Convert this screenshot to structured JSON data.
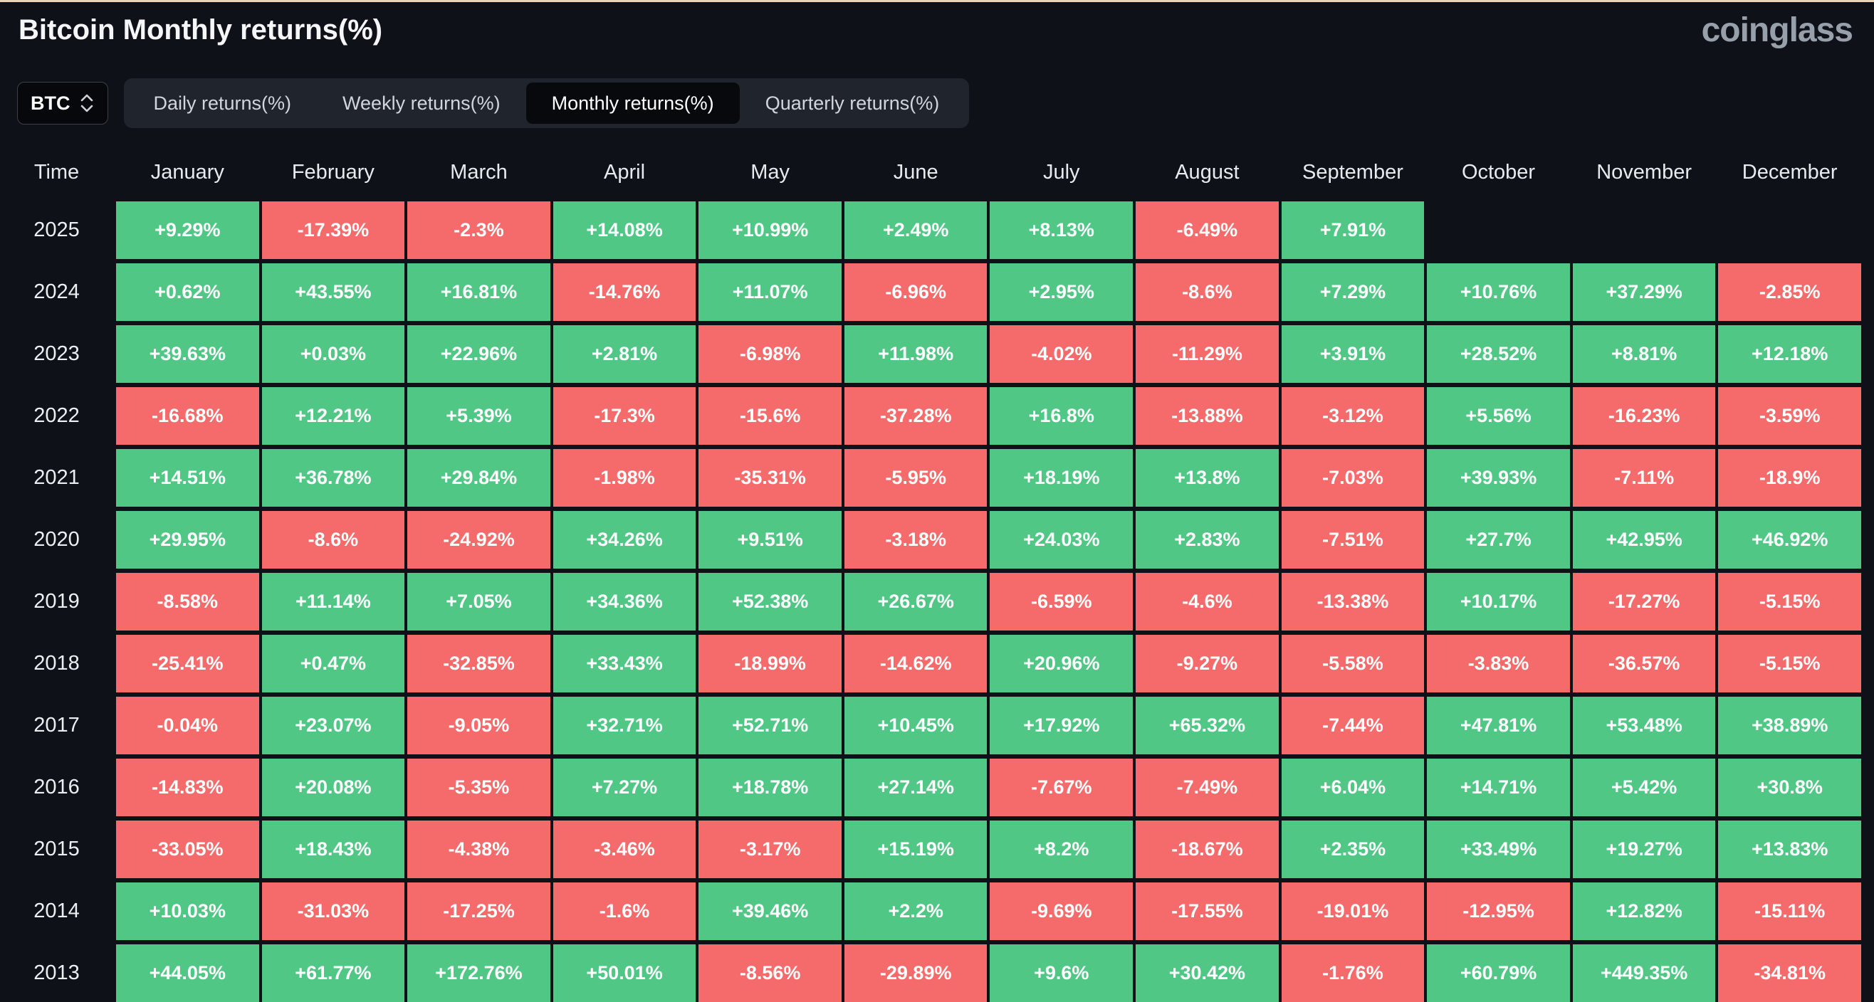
{
  "header": {
    "title": "Bitcoin Monthly returns(%)",
    "logo_text": "coinglass"
  },
  "controls": {
    "coin_selector": {
      "value": "BTC"
    },
    "tabs": [
      {
        "label": "Daily returns(%)",
        "active": false
      },
      {
        "label": "Weekly returns(%)",
        "active": false
      },
      {
        "label": "Monthly returns(%)",
        "active": true
      },
      {
        "label": "Quarterly returns(%)",
        "active": false
      }
    ]
  },
  "table": {
    "time_header": "Time",
    "month_headers": [
      "January",
      "February",
      "March",
      "April",
      "May",
      "June",
      "July",
      "August",
      "September",
      "October",
      "November",
      "December"
    ],
    "rows": [
      {
        "year": "2025",
        "values": [
          "+9.29%",
          "-17.39%",
          "-2.3%",
          "+14.08%",
          "+10.99%",
          "+2.49%",
          "+8.13%",
          "-6.49%",
          "+7.91%",
          null,
          null,
          null
        ]
      },
      {
        "year": "2024",
        "values": [
          "+0.62%",
          "+43.55%",
          "+16.81%",
          "-14.76%",
          "+11.07%",
          "-6.96%",
          "+2.95%",
          "-8.6%",
          "+7.29%",
          "+10.76%",
          "+37.29%",
          "-2.85%"
        ]
      },
      {
        "year": "2023",
        "values": [
          "+39.63%",
          "+0.03%",
          "+22.96%",
          "+2.81%",
          "-6.98%",
          "+11.98%",
          "-4.02%",
          "-11.29%",
          "+3.91%",
          "+28.52%",
          "+8.81%",
          "+12.18%"
        ]
      },
      {
        "year": "2022",
        "values": [
          "-16.68%",
          "+12.21%",
          "+5.39%",
          "-17.3%",
          "-15.6%",
          "-37.28%",
          "+16.8%",
          "-13.88%",
          "-3.12%",
          "+5.56%",
          "-16.23%",
          "-3.59%"
        ]
      },
      {
        "year": "2021",
        "values": [
          "+14.51%",
          "+36.78%",
          "+29.84%",
          "-1.98%",
          "-35.31%",
          "-5.95%",
          "+18.19%",
          "+13.8%",
          "-7.03%",
          "+39.93%",
          "-7.11%",
          "-18.9%"
        ]
      },
      {
        "year": "2020",
        "values": [
          "+29.95%",
          "-8.6%",
          "-24.92%",
          "+34.26%",
          "+9.51%",
          "-3.18%",
          "+24.03%",
          "+2.83%",
          "-7.51%",
          "+27.7%",
          "+42.95%",
          "+46.92%"
        ]
      },
      {
        "year": "2019",
        "values": [
          "-8.58%",
          "+11.14%",
          "+7.05%",
          "+34.36%",
          "+52.38%",
          "+26.67%",
          "-6.59%",
          "-4.6%",
          "-13.38%",
          "+10.17%",
          "-17.27%",
          "-5.15%"
        ]
      },
      {
        "year": "2018",
        "values": [
          "-25.41%",
          "+0.47%",
          "-32.85%",
          "+33.43%",
          "-18.99%",
          "-14.62%",
          "+20.96%",
          "-9.27%",
          "-5.58%",
          "-3.83%",
          "-36.57%",
          "-5.15%"
        ]
      },
      {
        "year": "2017",
        "values": [
          "-0.04%",
          "+23.07%",
          "-9.05%",
          "+32.71%",
          "+52.71%",
          "+10.45%",
          "+17.92%",
          "+65.32%",
          "-7.44%",
          "+47.81%",
          "+53.48%",
          "+38.89%"
        ]
      },
      {
        "year": "2016",
        "values": [
          "-14.83%",
          "+20.08%",
          "-5.35%",
          "+7.27%",
          "+18.78%",
          "+27.14%",
          "-7.67%",
          "-7.49%",
          "+6.04%",
          "+14.71%",
          "+5.42%",
          "+30.8%"
        ]
      },
      {
        "year": "2015",
        "values": [
          "-33.05%",
          "+18.43%",
          "-4.38%",
          "-3.46%",
          "-3.17%",
          "+15.19%",
          "+8.2%",
          "-18.67%",
          "+2.35%",
          "+33.49%",
          "+19.27%",
          "+13.83%"
        ]
      },
      {
        "year": "2014",
        "values": [
          "+10.03%",
          "-31.03%",
          "-17.25%",
          "-1.6%",
          "+39.46%",
          "+2.2%",
          "-9.69%",
          "-17.55%",
          "-19.01%",
          "-12.95%",
          "+12.82%",
          "-15.11%"
        ]
      },
      {
        "year": "2013",
        "values": [
          "+44.05%",
          "+61.77%",
          "+172.76%",
          "+50.01%",
          "-8.56%",
          "-29.89%",
          "+9.6%",
          "+30.42%",
          "-1.76%",
          "+60.79%",
          "+449.35%",
          "-34.81%"
        ]
      }
    ]
  },
  "colors": {
    "positive": "#51c786",
    "negative": "#f56b6b",
    "background": "#0e1117",
    "tabbar_background": "#20242d",
    "active_tab_background": "#08090d"
  }
}
